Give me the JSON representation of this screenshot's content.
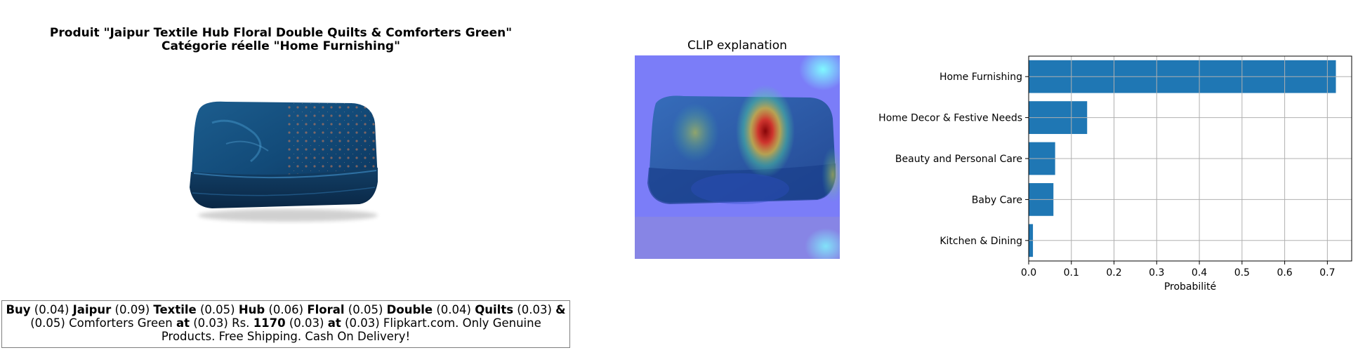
{
  "product_panel": {
    "title_line1": "Produit \"Jaipur Textile Hub Floral Double Quilts & Comforters Green\"",
    "title_line2": "Catégorie réelle \"Home Furnishing\""
  },
  "explanation_panel": {
    "title": "CLIP explanation"
  },
  "token_weights": [
    {
      "word": "Buy",
      "weight": "(0.04)"
    },
    {
      "word": "Jaipur",
      "weight": "(0.09)"
    },
    {
      "word": "Textile",
      "weight": "(0.05)"
    },
    {
      "word": "Hub",
      "weight": "(0.06)"
    },
    {
      "word": "Floral",
      "weight": "(0.05)"
    },
    {
      "word": "Double",
      "weight": "(0.04)"
    },
    {
      "word": "Quilts",
      "weight": "(0.03)"
    },
    {
      "word": "&",
      "weight": "(0.05)"
    },
    {
      "word": "Comforters",
      "weight": ""
    },
    {
      "word": "Green",
      "weight": ""
    },
    {
      "word": "at",
      "weight": "(0.03)"
    },
    {
      "word": "Rs.",
      "weight": ""
    },
    {
      "word": "1170",
      "weight": "(0.03)"
    },
    {
      "word": "at",
      "weight": "(0.03)"
    },
    {
      "word": "Flipkart.com.",
      "weight": ""
    },
    {
      "word": "Only",
      "weight": ""
    },
    {
      "word": "Genuine",
      "weight": ""
    },
    {
      "word": "Products.",
      "weight": ""
    },
    {
      "word": "Free",
      "weight": ""
    },
    {
      "word": "Shipping.",
      "weight": ""
    },
    {
      "word": "Cash",
      "weight": ""
    },
    {
      "word": "On",
      "weight": ""
    },
    {
      "word": "Delivery!",
      "weight": ""
    }
  ],
  "colors": {
    "bar": "#1f77b4",
    "grid": "#b0b0b0"
  },
  "chart_data": {
    "type": "bar",
    "orientation": "horizontal",
    "categories": [
      "Home Furnishing",
      "Home Decor & Festive Needs",
      "Beauty and Personal Care",
      "Baby Care",
      "Kitchen & Dining"
    ],
    "values": [
      0.72,
      0.137,
      0.062,
      0.058,
      0.01
    ],
    "xlabel": "Probabilité",
    "ylabel": "",
    "xlim": [
      0,
      0.757
    ],
    "xticks": [
      0.0,
      0.1,
      0.2,
      0.3,
      0.4,
      0.5,
      0.6,
      0.7
    ],
    "xtick_labels": [
      "0.0",
      "0.1",
      "0.2",
      "0.3",
      "0.4",
      "0.5",
      "0.6",
      "0.7"
    ],
    "grid": true
  }
}
